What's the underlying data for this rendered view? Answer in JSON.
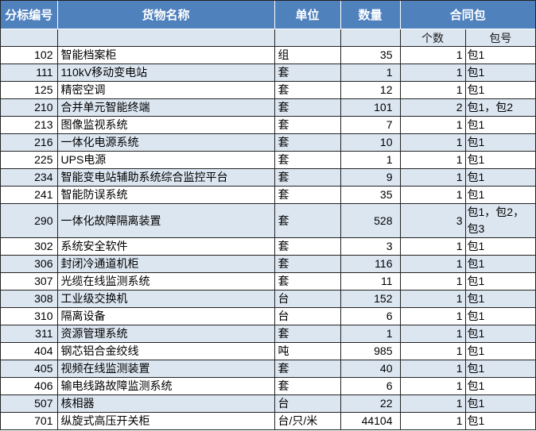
{
  "table": {
    "headers": {
      "bid": "分标编号",
      "name": "货物名称",
      "unit": "单位",
      "qty": "数量",
      "package_group": "合同包",
      "pkg_count": "个数",
      "pkg_no": "包号"
    },
    "rows": [
      {
        "bid": "102",
        "name": "智能档案柜",
        "unit": "组",
        "qty": "35",
        "pkg_count": "1",
        "pkg_no": "包1"
      },
      {
        "bid": "111",
        "name": "110kV移动变电站",
        "unit": "套",
        "qty": "1",
        "pkg_count": "1",
        "pkg_no": "包1"
      },
      {
        "bid": "125",
        "name": "精密空调",
        "unit": "套",
        "qty": "12",
        "pkg_count": "1",
        "pkg_no": "包1"
      },
      {
        "bid": "210",
        "name": "合并单元智能终端",
        "unit": "套",
        "qty": "101",
        "pkg_count": "2",
        "pkg_no": "包1，包2"
      },
      {
        "bid": "213",
        "name": "图像监视系统",
        "unit": "套",
        "qty": "7",
        "pkg_count": "1",
        "pkg_no": "包1"
      },
      {
        "bid": "216",
        "name": "一体化电源系统",
        "unit": "套",
        "qty": "10",
        "pkg_count": "1",
        "pkg_no": "包1"
      },
      {
        "bid": "225",
        "name": "UPS电源",
        "unit": "套",
        "qty": "1",
        "pkg_count": "1",
        "pkg_no": "包1"
      },
      {
        "bid": "234",
        "name": "智能变电站辅助系统综合监控平台",
        "unit": "套",
        "qty": "9",
        "pkg_count": "1",
        "pkg_no": "包1"
      },
      {
        "bid": "241",
        "name": "智能防误系统",
        "unit": "套",
        "qty": "35",
        "pkg_count": "1",
        "pkg_no": "包1"
      },
      {
        "bid": "290",
        "name": "一体化故障隔离装置",
        "unit": "套",
        "qty": "528",
        "pkg_count": "3",
        "pkg_no": "包1，包2，包3"
      },
      {
        "bid": "302",
        "name": "系统安全软件",
        "unit": "套",
        "qty": "3",
        "pkg_count": "1",
        "pkg_no": "包1"
      },
      {
        "bid": "306",
        "name": "封闭冷通道机柜",
        "unit": "套",
        "qty": "116",
        "pkg_count": "1",
        "pkg_no": "包1"
      },
      {
        "bid": "307",
        "name": "光缆在线监测系统",
        "unit": "套",
        "qty": "11",
        "pkg_count": "1",
        "pkg_no": "包1"
      },
      {
        "bid": "308",
        "name": "工业级交换机",
        "unit": "台",
        "qty": "152",
        "pkg_count": "1",
        "pkg_no": "包1"
      },
      {
        "bid": "310",
        "name": "隔离设备",
        "unit": "台",
        "qty": "6",
        "pkg_count": "1",
        "pkg_no": "包1"
      },
      {
        "bid": "311",
        "name": "资源管理系统",
        "unit": "套",
        "qty": "1",
        "pkg_count": "1",
        "pkg_no": "包1"
      },
      {
        "bid": "404",
        "name": "钢芯铝合金绞线",
        "unit": "吨",
        "qty": "985",
        "pkg_count": "1",
        "pkg_no": "包1"
      },
      {
        "bid": "405",
        "name": "视频在线监测装置",
        "unit": "套",
        "qty": "40",
        "pkg_count": "1",
        "pkg_no": "包1"
      },
      {
        "bid": "406",
        "name": "输电线路故障监测系统",
        "unit": "套",
        "qty": "6",
        "pkg_count": "1",
        "pkg_no": "包1"
      },
      {
        "bid": "507",
        "name": "核相器",
        "unit": "台",
        "qty": "22",
        "pkg_count": "1",
        "pkg_no": "包1"
      },
      {
        "bid": "701",
        "name": "纵旋式高压开关柜",
        "unit": "台/只/米",
        "qty": "44104",
        "pkg_count": "1",
        "pkg_no": "包1"
      }
    ],
    "colors": {
      "header_bg": "#4f81bd",
      "header_text": "#ffffff",
      "subheader_bg": "#dce6f1",
      "row_bg": "#ffffff",
      "row_alt_bg": "#dce6f1",
      "border": "#222222"
    }
  }
}
